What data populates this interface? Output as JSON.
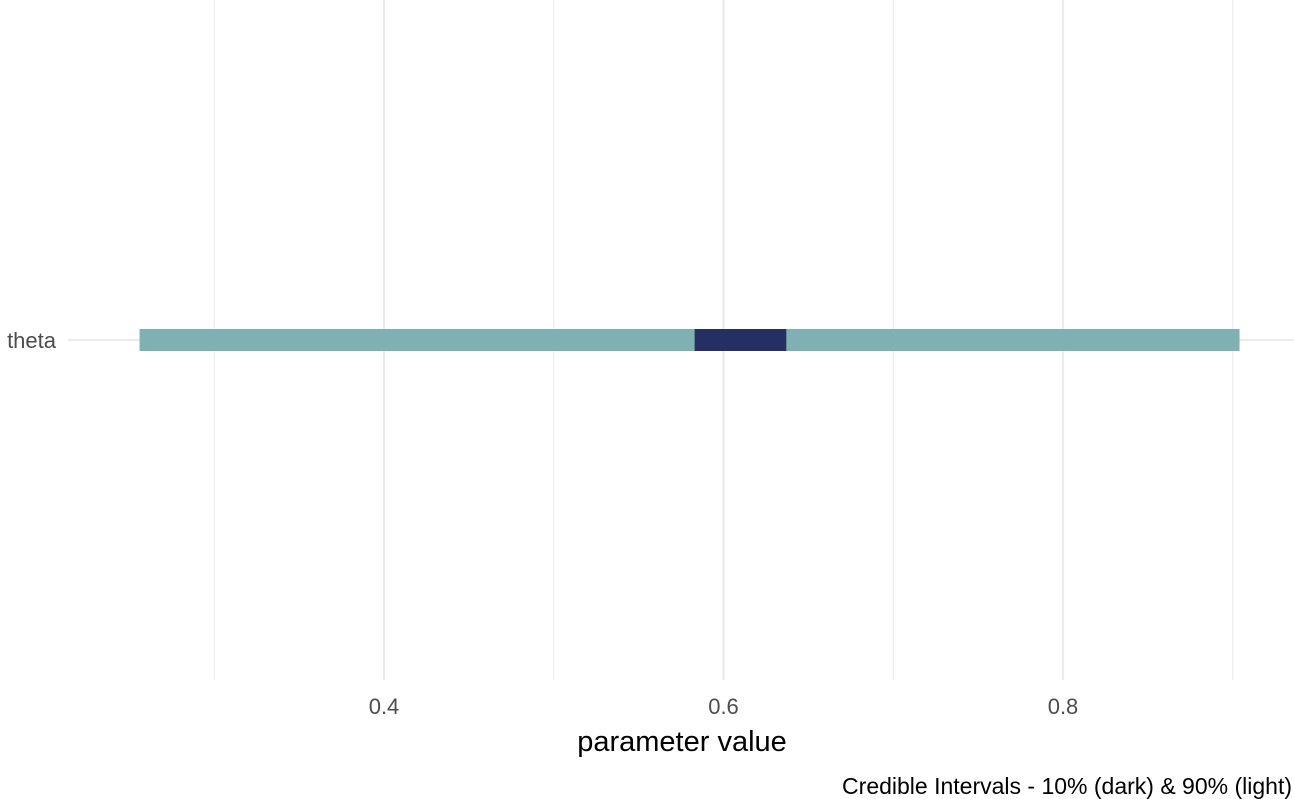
{
  "chart_data": {
    "type": "interval",
    "parameters": [
      "theta"
    ],
    "intervals": [
      {
        "parameter": "theta",
        "outer": [
          0.256,
          0.904
        ],
        "inner": [
          0.583,
          0.637
        ]
      }
    ],
    "x_ticks": [
      0.4,
      0.6,
      0.8
    ],
    "x_tick_labels": [
      "0.4",
      "0.6",
      "0.8"
    ],
    "x_minor_ticks": [
      0.3,
      0.5,
      0.7,
      0.9
    ],
    "xlim": [
      0.2,
      0.935
    ],
    "xlabel": "parameter value",
    "ylabel": "",
    "caption": "Credible Intervals - 10% (dark) & 90% (light)",
    "grid": true,
    "colors": {
      "outer": "#7fb0b2",
      "inner": "#262f62",
      "grid": "#ebebeb",
      "tick_text": "#4d4d4d"
    }
  }
}
